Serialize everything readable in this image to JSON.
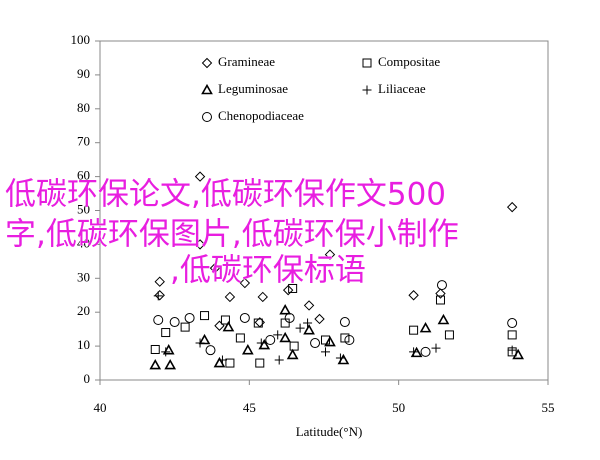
{
  "chart_data": {
    "type": "scatter",
    "x_label": "Latitude(°N)",
    "xlim": [
      40,
      55
    ],
    "xticks": [
      40,
      45,
      50,
      55
    ],
    "ylim": [
      0,
      100
    ],
    "yticks": [
      0,
      10,
      20,
      30,
      40,
      50,
      60,
      70,
      80,
      90,
      100
    ],
    "watermark_lines": [
      "低碳环保论文,低碳环保作文500",
      "字,低碳环保图片,低碳环保小制作",
      ",低碳环保标语"
    ],
    "series": [
      {
        "name": "Gramineae",
        "marker": "diamond",
        "color": "#000000",
        "x": [
          42.0,
          42.0,
          43.35,
          43.85,
          44.35,
          44.85,
          45.45,
          46.3,
          47.0,
          47.7,
          50.5,
          51.4,
          53.8,
          43.35,
          44.0,
          45.35,
          47.35
        ],
        "values": [
          29,
          25,
          60,
          33,
          24.5,
          28.6,
          24.5,
          26.5,
          22,
          37,
          25,
          25.5,
          51,
          40,
          16,
          17,
          18
        ]
      },
      {
        "name": "Compositae",
        "marker": "square",
        "color": "#000000",
        "x": [
          41.85,
          42.2,
          42.85,
          43.5,
          44.2,
          44.7,
          45.3,
          46.2,
          46.5,
          47.55,
          48.2,
          50.5,
          51.4,
          51.7,
          53.8,
          53.8,
          46.45,
          44.35,
          45.35
        ],
        "values": [
          9,
          14,
          15.6,
          19,
          17.7,
          12.4,
          16.8,
          16.8,
          10,
          11.8,
          12.4,
          14.7,
          23.6,
          13.3,
          13.3,
          8.3,
          27,
          5,
          5
        ]
      },
      {
        "name": "Leguminosae",
        "marker": "triangle",
        "color": "#000000",
        "x": [
          41.85,
          42.3,
          42.35,
          43.5,
          44.0,
          44.3,
          44.95,
          45.5,
          46.2,
          46.45,
          47.0,
          47.7,
          48.15,
          50.6,
          50.9,
          51.5,
          54.0,
          46.2
        ],
        "values": [
          4.4,
          8.8,
          4.4,
          11.8,
          5,
          15.6,
          8.8,
          10.3,
          12.4,
          7.4,
          14.7,
          11.2,
          5.9,
          8,
          15.3,
          17.7,
          7.4,
          20.6
        ]
      },
      {
        "name": "Liliaceae",
        "marker": "plus",
        "color": "#000000",
        "x": [
          41.95,
          42.2,
          43.35,
          44.1,
          45.4,
          45.95,
          46.0,
          46.7,
          46.95,
          47.55,
          48.05,
          50.5,
          51.25,
          53.8
        ],
        "values": [
          24.8,
          8.3,
          10.9,
          5.9,
          10.9,
          13.3,
          5.9,
          15.3,
          16.8,
          8.3,
          6.5,
          8.3,
          9.4,
          8.8
        ]
      },
      {
        "name": "Chenopodiaceae",
        "marker": "circle",
        "color": "#000000",
        "x": [
          41.95,
          42.5,
          43.0,
          43.7,
          44.85,
          45.7,
          46.35,
          47.2,
          48.2,
          50.9,
          51.45,
          53.8,
          48.35
        ],
        "values": [
          17.7,
          17.1,
          18.3,
          8.8,
          18.3,
          11.8,
          18.3,
          10.9,
          17.1,
          8.3,
          28,
          16.8,
          11.8
        ]
      }
    ]
  }
}
